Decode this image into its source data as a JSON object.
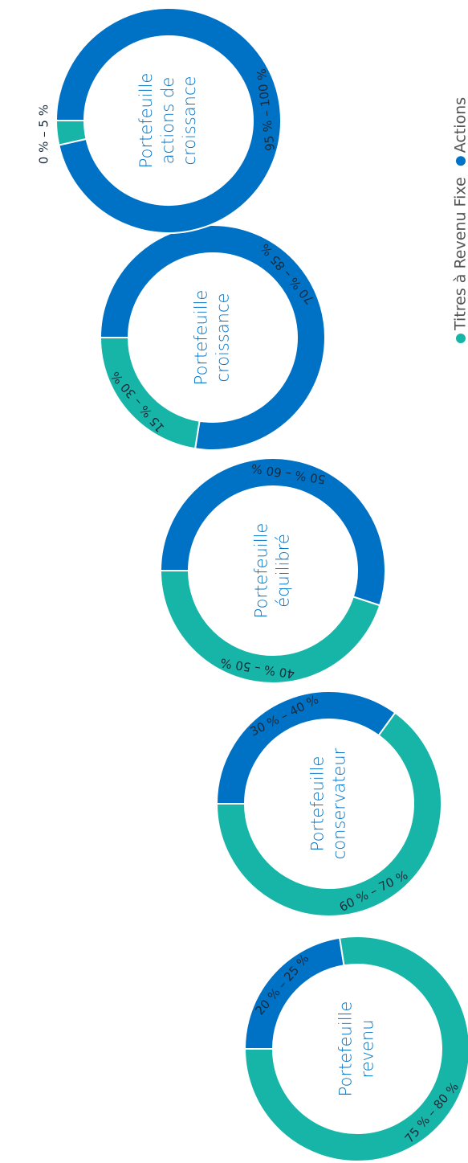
{
  "legend": [
    {
      "name": "Titres à Revenu Fixe",
      "color": "#17b5a8"
    },
    {
      "name": "Actions",
      "color": "#0072c6"
    }
  ],
  "chart_data": [
    {
      "type": "pie",
      "title": [
        "Portefeuille",
        "revenu"
      ],
      "values": [
        77.5,
        22.5
      ],
      "value_labels": [
        "75 % – 80 %",
        "20 % – 25 %"
      ]
    },
    {
      "type": "pie",
      "title": [
        "Portefeuille",
        "conservateur"
      ],
      "values": [
        65,
        35
      ],
      "value_labels": [
        "60 % – 70 %",
        "30 % – 40 %"
      ]
    },
    {
      "type": "pie",
      "title": [
        "Portefeuille",
        "équilibré"
      ],
      "values": [
        45,
        55
      ],
      "value_labels": [
        "40 % – 50 %",
        "50 % – 60 %"
      ]
    },
    {
      "type": "pie",
      "title": [
        "Portefeuille",
        "croissance"
      ],
      "values": [
        22.5,
        77.5
      ],
      "value_labels": [
        "15 % – 30 %",
        "70 % – 85 %"
      ]
    },
    {
      "type": "pie",
      "title": [
        "Portefeuille",
        "actions de",
        "croissance"
      ],
      "values": [
        3.5,
        96.5
      ],
      "value_labels": [
        "0 % – 5 %",
        "95 % – 100 %"
      ]
    }
  ]
}
